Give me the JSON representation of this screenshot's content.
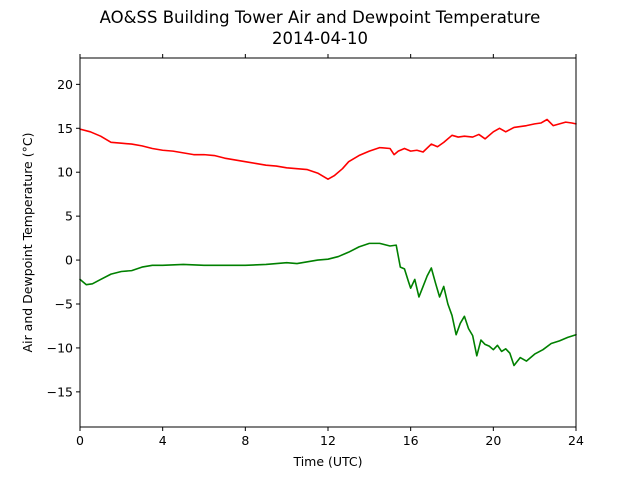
{
  "chart_data": {
    "type": "line",
    "title": "AO&SS Building Tower Air and Dewpoint Temperature",
    "subtitle": "2014-04-10",
    "xlabel": "Time (UTC)",
    "ylabel": "Air and Dewpoint Temperature (°C)",
    "xlim": [
      0,
      24
    ],
    "ylim": [
      -19,
      23
    ],
    "xticks": [
      0,
      4,
      8,
      12,
      16,
      20,
      24
    ],
    "yticks": [
      -15,
      -10,
      -5,
      0,
      5,
      10,
      15,
      20
    ],
    "grid": false,
    "series": [
      {
        "color": "#ff0000",
        "x": [
          0,
          0.5,
          1,
          1.5,
          2,
          2.5,
          3,
          3.5,
          4,
          4.5,
          5,
          5.5,
          6,
          6.5,
          7,
          7.5,
          8,
          8.5,
          9,
          9.5,
          10,
          10.5,
          11,
          11.5,
          12,
          12.3,
          12.7,
          13,
          13.5,
          14,
          14.5,
          15,
          15.2,
          15.4,
          15.7,
          16,
          16.3,
          16.6,
          17,
          17.3,
          17.6,
          18,
          18.3,
          18.6,
          19,
          19.3,
          19.6,
          20,
          20.3,
          20.6,
          21,
          21.3,
          21.6,
          22,
          22.3,
          22.6,
          22.9,
          23.2,
          23.5,
          23.8,
          24
        ],
        "y": [
          14.9,
          14.6,
          14.1,
          13.4,
          13.3,
          13.2,
          13.0,
          12.7,
          12.5,
          12.4,
          12.2,
          12.0,
          12.0,
          11.9,
          11.6,
          11.4,
          11.2,
          11.0,
          10.8,
          10.7,
          10.5,
          10.4,
          10.3,
          9.9,
          9.2,
          9.6,
          10.4,
          11.2,
          11.9,
          12.4,
          12.8,
          12.7,
          12.0,
          12.4,
          12.7,
          12.4,
          12.5,
          12.3,
          13.2,
          12.9,
          13.4,
          14.2,
          14.0,
          14.1,
          14.0,
          14.3,
          13.8,
          14.6,
          15.0,
          14.6,
          15.1,
          15.2,
          15.3,
          15.5,
          15.6,
          16.0,
          15.3,
          15.5,
          15.7,
          15.6,
          15.5
        ]
      },
      {
        "color": "#008000",
        "x": [
          0,
          0.3,
          0.6,
          1,
          1.5,
          2,
          2.5,
          3,
          3.5,
          4,
          5,
          6,
          7,
          8,
          9,
          10,
          10.5,
          11,
          11.5,
          12,
          12.5,
          13,
          13.5,
          14,
          14.5,
          15,
          15.3,
          15.5,
          15.7,
          15.9,
          16.0,
          16.2,
          16.4,
          16.6,
          16.8,
          17.0,
          17.2,
          17.4,
          17.6,
          17.8,
          18.0,
          18.2,
          18.4,
          18.6,
          18.8,
          19.0,
          19.2,
          19.4,
          19.6,
          19.8,
          20.0,
          20.2,
          20.4,
          20.6,
          20.8,
          21.0,
          21.3,
          21.6,
          22.0,
          22.4,
          22.8,
          23.2,
          23.6,
          24
        ],
        "y": [
          -2.2,
          -2.8,
          -2.7,
          -2.2,
          -1.6,
          -1.3,
          -1.2,
          -0.8,
          -0.6,
          -0.6,
          -0.5,
          -0.6,
          -0.6,
          -0.6,
          -0.5,
          -0.3,
          -0.4,
          -0.2,
          0.0,
          0.1,
          0.4,
          0.9,
          1.5,
          1.9,
          1.9,
          1.6,
          1.7,
          -0.8,
          -1.0,
          -2.5,
          -3.2,
          -2.2,
          -4.2,
          -3.0,
          -1.8,
          -0.9,
          -2.6,
          -4.2,
          -3.0,
          -5.0,
          -6.3,
          -8.5,
          -7.2,
          -6.4,
          -7.8,
          -8.6,
          -10.9,
          -9.1,
          -9.6,
          -9.8,
          -10.2,
          -9.7,
          -10.4,
          -10.1,
          -10.6,
          -12.0,
          -11.1,
          -11.5,
          -10.7,
          -10.2,
          -9.5,
          -9.2,
          -8.8,
          -8.5
        ]
      }
    ]
  }
}
